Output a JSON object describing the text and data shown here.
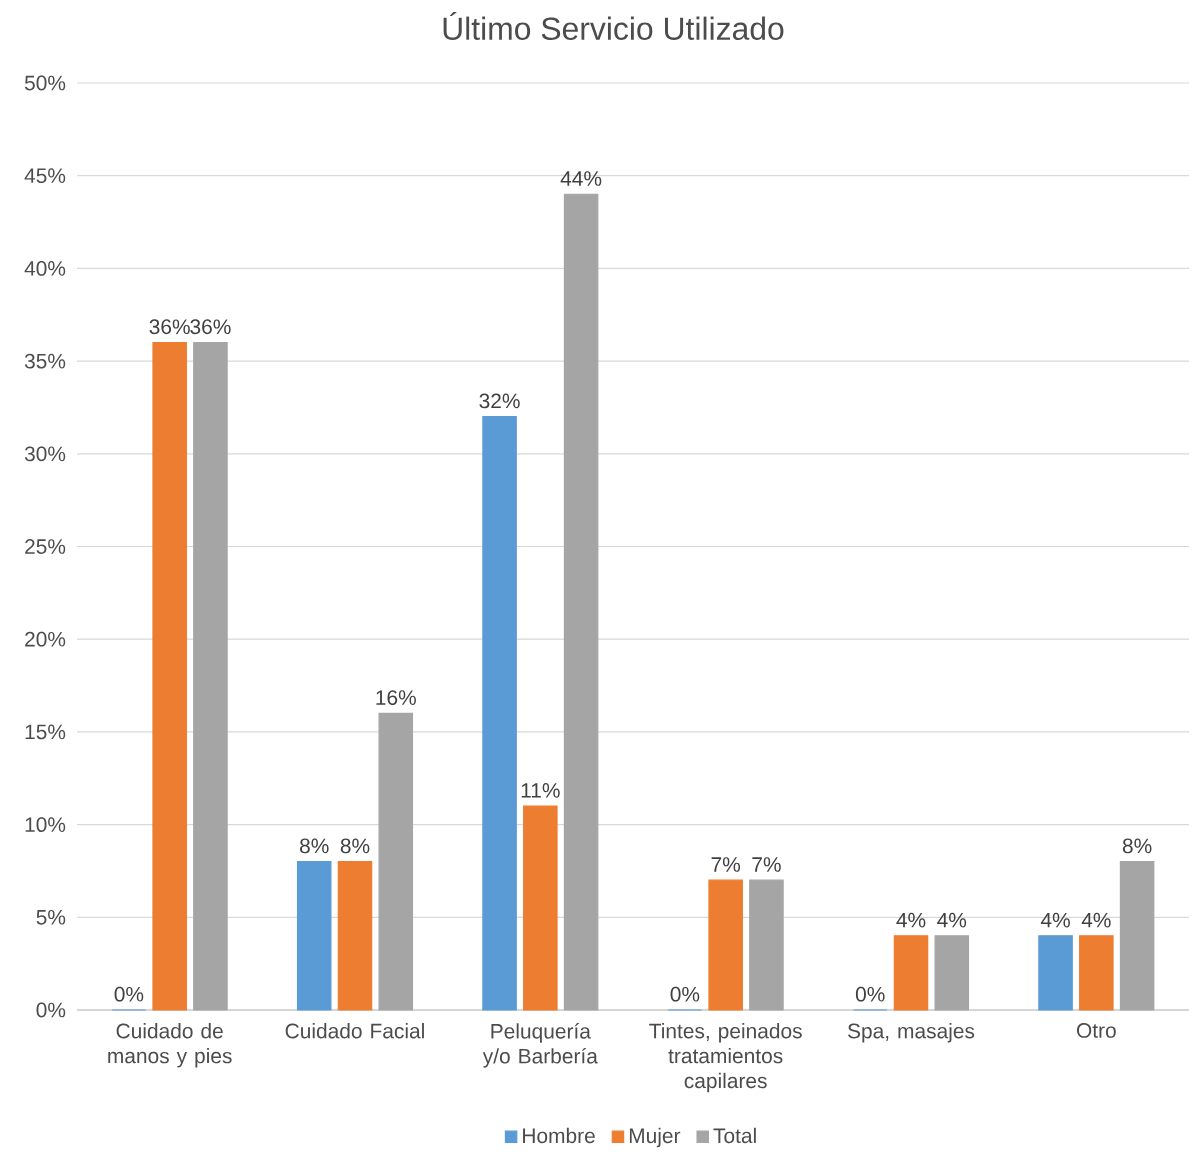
{
  "chart_data": {
    "type": "bar",
    "title": "Último Servicio Utilizado",
    "categories": [
      "Cuidado de manos y pies",
      "Cuidado Facial",
      "Peluquería y/o Barbería",
      "Tintes, peinados tratamientos capilares",
      "Spa, masajes",
      "Otro"
    ],
    "series": [
      {
        "name": "Hombre",
        "color": "#5b9bd5",
        "values": [
          0,
          8,
          32,
          0,
          0,
          4
        ],
        "value_labels": [
          "0%",
          "8%",
          "32%",
          "0%",
          "0%",
          "4%"
        ]
      },
      {
        "name": "Mujer",
        "color": "#ed7d31",
        "values": [
          36,
          8,
          11,
          7,
          4,
          4
        ],
        "value_labels": [
          "36%",
          "8%",
          "11%",
          "7%",
          "4%",
          "4%"
        ]
      },
      {
        "name": "Total",
        "color": "#a5a5a5",
        "values": [
          36,
          16,
          44,
          7,
          4,
          8
        ],
        "value_labels": [
          "36%",
          "16%",
          "44%",
          "7%",
          "4%",
          "8%"
        ]
      }
    ],
    "ylim": [
      0,
      50
    ],
    "yticks": [
      {
        "value": 0,
        "label": "0%"
      },
      {
        "value": 5,
        "label": "5%"
      },
      {
        "value": 10,
        "label": "10%"
      },
      {
        "value": 15,
        "label": "15%"
      },
      {
        "value": 20,
        "label": "20%"
      },
      {
        "value": 25,
        "label": "25%"
      },
      {
        "value": 30,
        "label": "30%"
      },
      {
        "value": 35,
        "label": "35%"
      },
      {
        "value": 40,
        "label": "40%"
      },
      {
        "value": 45,
        "label": "45%"
      },
      {
        "value": 50,
        "label": "50%"
      }
    ],
    "grid": "y",
    "legend": "bottom"
  }
}
